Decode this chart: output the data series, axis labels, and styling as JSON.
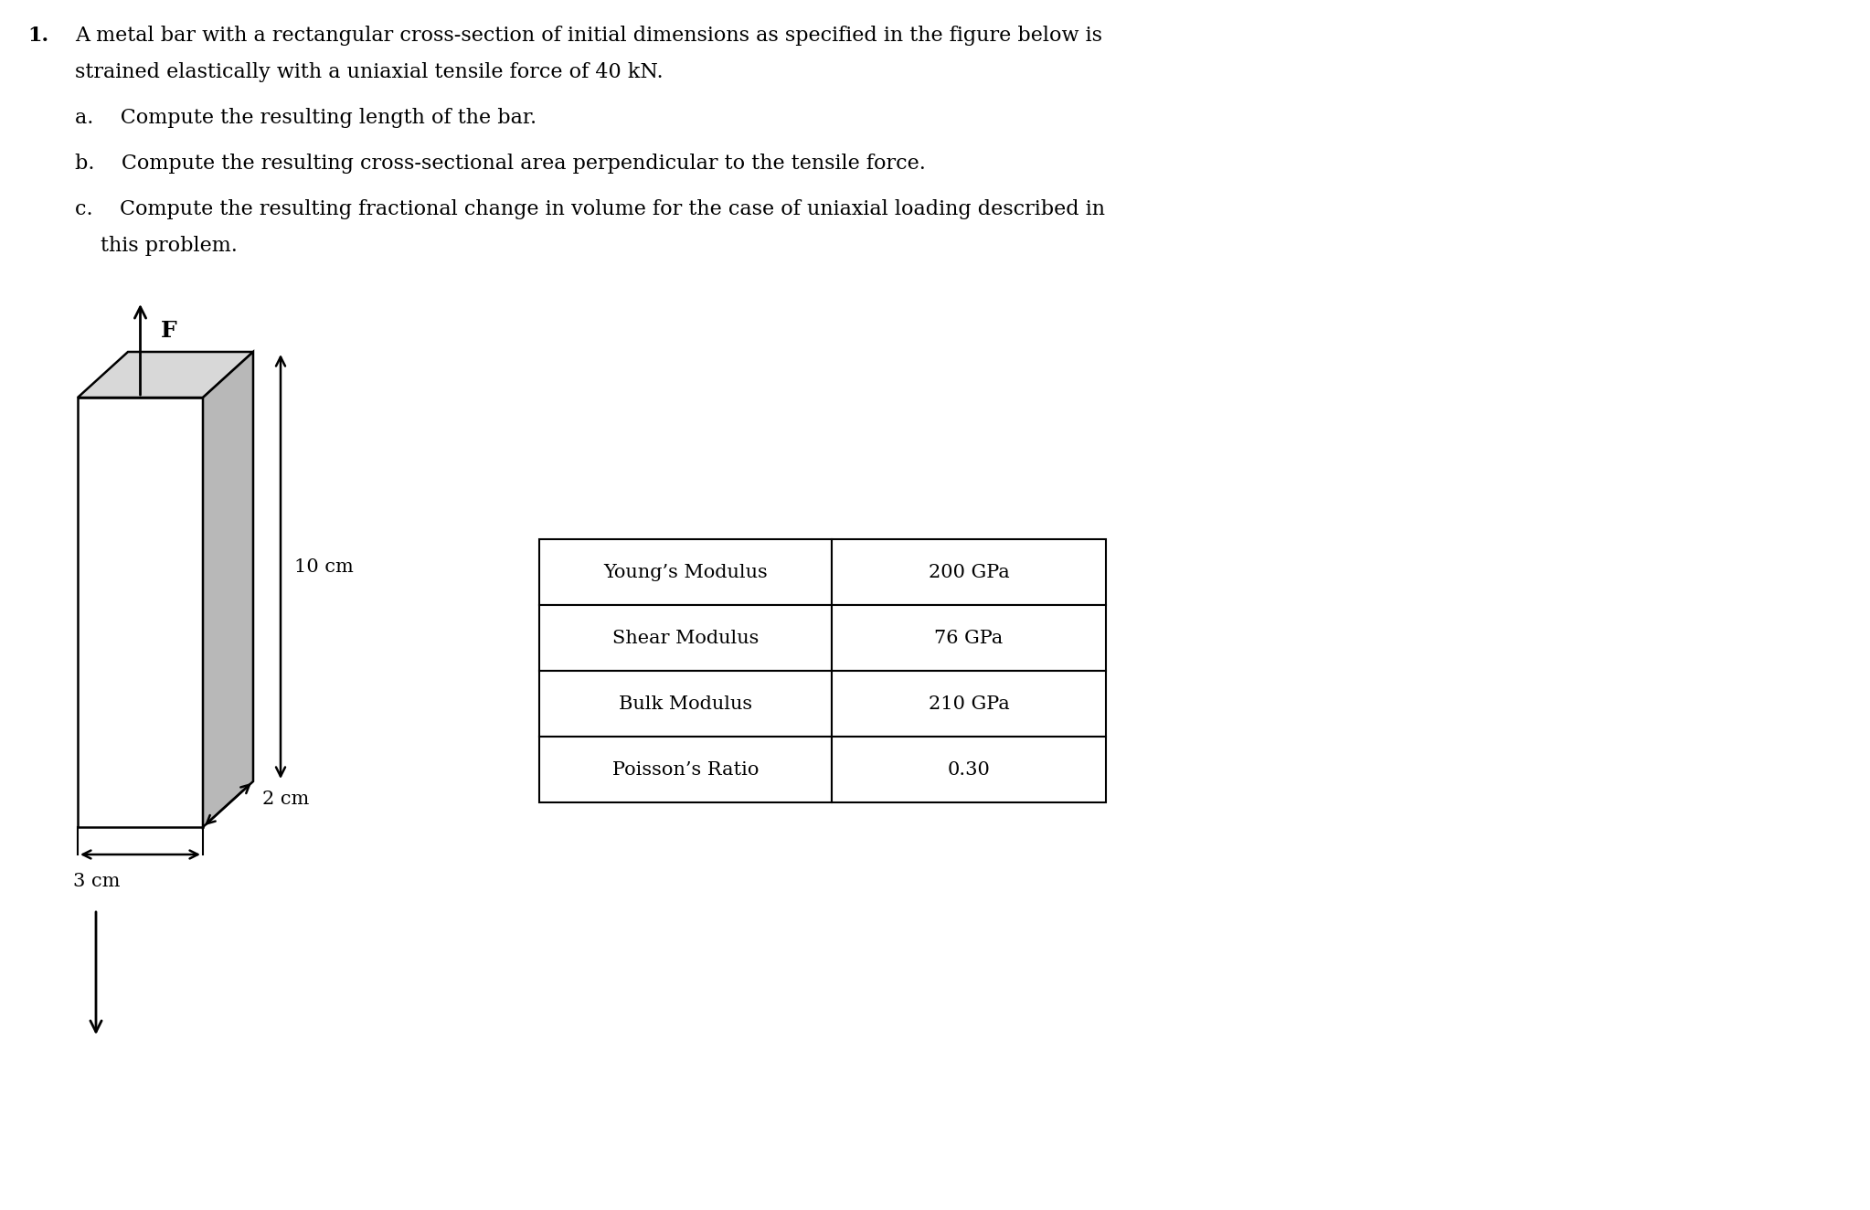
{
  "background_color": "#ffffff",
  "text_color": "#000000",
  "title_number": "1.",
  "main_text_line1": "A metal bar with a rectangular cross-section of initial dimensions as specified in the figure below is",
  "main_text_line2": "strained elastically with a uniaxial tensile force of 40 kN.",
  "item_a": "a.  Compute the resulting length of the bar.",
  "item_b": "b.  Compute the resulting cross-sectional area perpendicular to the tensile force.",
  "item_c_line1": "c.  Compute the resulting fractional change in volume for the case of uniaxial loading described in",
  "item_c_line2": "this problem.",
  "table_rows": [
    [
      "Young’s Modulus",
      "200 GPa"
    ],
    [
      "Shear Modulus",
      "76 GPa"
    ],
    [
      "Bulk Modulus",
      "210 GPa"
    ],
    [
      "Poisson’s Ratio",
      "0.30"
    ]
  ],
  "label_F": "F",
  "label_10cm": "10 cm",
  "label_2cm": "2 cm",
  "label_3cm": "3 cm",
  "font_size_main": 16,
  "font_size_table": 15,
  "font_size_label": 15
}
